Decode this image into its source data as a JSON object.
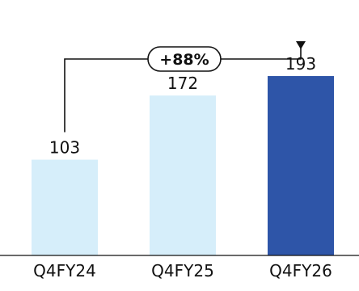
{
  "chart_data": {
    "type": "bar",
    "categories": [
      "Q4FY24",
      "Q4FY25",
      "Q4FY26"
    ],
    "values": [
      103,
      172,
      193
    ],
    "bar_colors": [
      "#d6eefa",
      "#d6eefa",
      "#2e55a8"
    ],
    "ylim": [
      0,
      240
    ],
    "grid": false,
    "annotation": {
      "text": "+88%",
      "from": "Q4FY24",
      "to": "Q4FY26"
    }
  }
}
